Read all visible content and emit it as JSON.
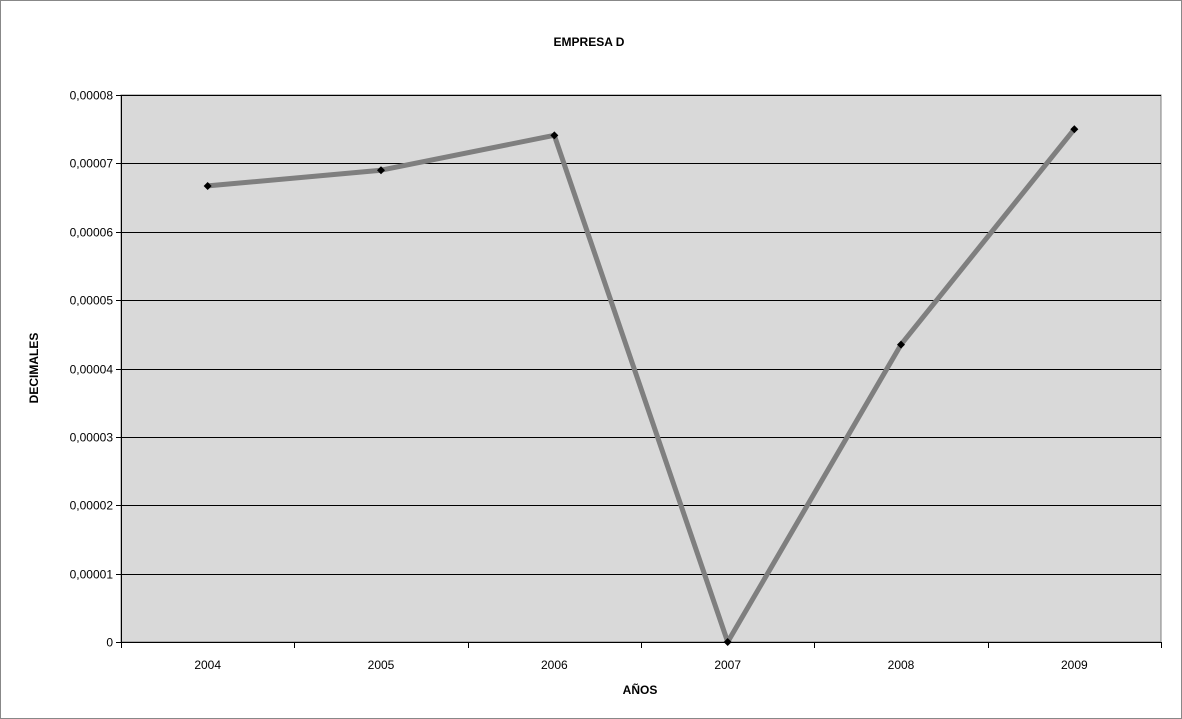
{
  "chart_data": {
    "type": "line",
    "title": "EMPRESA D",
    "xlabel": "AÑOS",
    "ylabel": "DECIMALES",
    "categories": [
      "2004",
      "2005",
      "2006",
      "2007",
      "2008",
      "2009"
    ],
    "series": [
      {
        "values": [
          6.67e-05,
          6.9e-05,
          7.41e-05,
          0,
          4.35e-05,
          7.5e-05
        ],
        "color": "#7f7f7f",
        "marker_color": "#000000"
      }
    ],
    "ylim": [
      0,
      8e-05
    ],
    "yticks": [
      0,
      1e-05,
      2e-05,
      3e-05,
      4e-05,
      5e-05,
      6e-05,
      7e-05,
      8e-05
    ],
    "ytick_labels": [
      "0",
      "0,00001",
      "0,00002",
      "0,00003",
      "0,00004",
      "0,00005",
      "0,00006",
      "0,00007",
      "0,00008"
    ],
    "grid": true,
    "legend": "none",
    "plot_background": "#d9d9d9",
    "gridline_color": "#000000"
  }
}
